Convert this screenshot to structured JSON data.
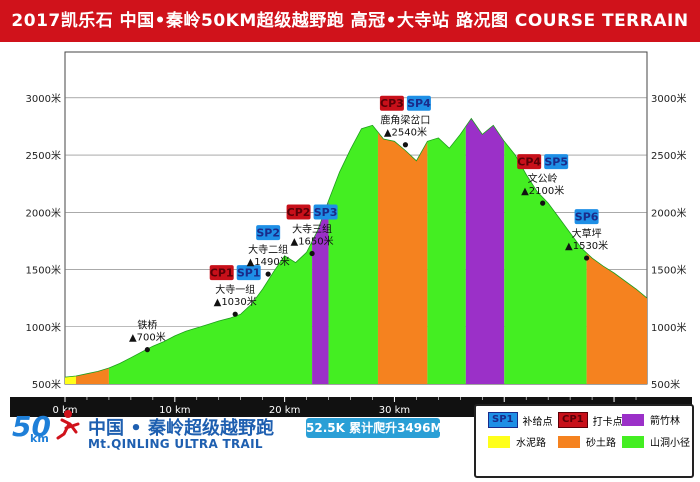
{
  "title": "2017凯乐石 中国•秦岭50KM超级越野跑  高冠•大寺站   路况图 COURSE TERRAIN",
  "chart_data": {
    "type": "area",
    "xlim": [
      0,
      53
    ],
    "ylim": [
      500,
      3400
    ],
    "x_ticks": [
      {
        "value": 0,
        "label": "0 km"
      },
      {
        "value": 10,
        "label": "10 km"
      },
      {
        "value": 20,
        "label": "20 km"
      },
      {
        "value": 30,
        "label": "30 km"
      },
      {
        "value": 40,
        "label": "40 km"
      },
      {
        "value": 50,
        "label": "50 km"
      }
    ],
    "y_ticks": [
      {
        "value": 500,
        "label": "500米"
      },
      {
        "value": 1000,
        "label": "1000米"
      },
      {
        "value": 1500,
        "label": "1500米"
      },
      {
        "value": 2000,
        "label": "2000米"
      },
      {
        "value": 2500,
        "label": "2500米"
      },
      {
        "value": 3000,
        "label": "3000米"
      }
    ],
    "profile": [
      [
        0,
        560
      ],
      [
        1,
        570
      ],
      [
        2,
        590
      ],
      [
        3,
        610
      ],
      [
        4,
        640
      ],
      [
        5,
        680
      ],
      [
        6,
        730
      ],
      [
        7,
        780
      ],
      [
        8,
        830
      ],
      [
        9,
        870
      ],
      [
        10,
        920
      ],
      [
        11,
        960
      ],
      [
        12,
        990
      ],
      [
        13,
        1020
      ],
      [
        14,
        1050
      ],
      [
        15,
        1075
      ],
      [
        16,
        1110
      ],
      [
        17,
        1200
      ],
      [
        18,
        1330
      ],
      [
        19,
        1480
      ],
      [
        20,
        1620
      ],
      [
        21,
        1560
      ],
      [
        22,
        1650
      ],
      [
        23,
        1840
      ],
      [
        24,
        2100
      ],
      [
        25,
        2350
      ],
      [
        26,
        2550
      ],
      [
        27,
        2730
      ],
      [
        28,
        2760
      ],
      [
        29,
        2640
      ],
      [
        30,
        2620
      ],
      [
        31,
        2540
      ],
      [
        32,
        2450
      ],
      [
        33,
        2620
      ],
      [
        34,
        2650
      ],
      [
        35,
        2560
      ],
      [
        36,
        2680
      ],
      [
        37,
        2820
      ],
      [
        38,
        2680
      ],
      [
        39,
        2760
      ],
      [
        40,
        2620
      ],
      [
        41,
        2500
      ],
      [
        42,
        2330
      ],
      [
        43,
        2180
      ],
      [
        44,
        2080
      ],
      [
        45,
        1950
      ],
      [
        46,
        1820
      ],
      [
        47,
        1690
      ],
      [
        48,
        1600
      ],
      [
        49,
        1530
      ],
      [
        50,
        1470
      ],
      [
        51,
        1400
      ],
      [
        52,
        1330
      ],
      [
        53,
        1250
      ]
    ],
    "segments": [
      {
        "from": 0,
        "to": 1,
        "surface": "cement"
      },
      {
        "from": 1,
        "to": 4,
        "surface": "gravel"
      },
      {
        "from": 4,
        "to": 22.5,
        "surface": "trail"
      },
      {
        "from": 22.5,
        "to": 24,
        "surface": "bamboo"
      },
      {
        "from": 24,
        "to": 28.5,
        "surface": "trail"
      },
      {
        "from": 28.5,
        "to": 33,
        "surface": "gravel"
      },
      {
        "from": 33,
        "to": 36.5,
        "surface": "trail"
      },
      {
        "from": 36.5,
        "to": 40,
        "surface": "bamboo"
      },
      {
        "from": 40,
        "to": 47.5,
        "surface": "trail"
      },
      {
        "from": 47.5,
        "to": 53,
        "surface": "gravel"
      }
    ],
    "stations": [
      {
        "x": 7.5,
        "y": 800,
        "tags": [],
        "name": "铁桥",
        "elev": "▲700米"
      },
      {
        "x": 15.5,
        "y": 1110,
        "tags": [
          "CP1",
          "SP1"
        ],
        "name": "大寺一组",
        "elev": "▲1030米"
      },
      {
        "x": 18.5,
        "y": 1460,
        "tags": [
          "SP2"
        ],
        "name": "大寺二组",
        "elev": "▲1490米"
      },
      {
        "x": 22.5,
        "y": 1640,
        "tags": [
          "CP2",
          "SP3"
        ],
        "name": "大寺三组",
        "elev": "▲1650米"
      },
      {
        "x": 31,
        "y": 2590,
        "tags": [
          "CP3",
          "SP4"
        ],
        "name": "鹿角梁岔口",
        "elev": "▲2540米"
      },
      {
        "x": 43.5,
        "y": 2080,
        "tags": [
          "CP4",
          "SP5"
        ],
        "name": "文公岭",
        "elev": "▲2100米"
      },
      {
        "x": 47.5,
        "y": 1600,
        "tags": [
          "SP6"
        ],
        "name": "大草坪",
        "elev": "▲1530米"
      }
    ]
  },
  "colors": {
    "cement": "#ffff1a",
    "gravel": "#f5821f",
    "trail": "#44ee22",
    "bamboo": "#9b30c8",
    "sp_badge": "#1e8fe6",
    "cp_badge": "#c8101a",
    "title_bg": "#d0121b"
  },
  "logo": {
    "num": "50",
    "km": "km",
    "cn": "中国 • 秦岭超级越野跑",
    "en": "Mt.QINLING ULTRA TRAIL"
  },
  "ascent_label": "52.5K 累计爬升3496M",
  "legend": {
    "sp_tag": "SP1",
    "sp_label": "补给点",
    "cp_tag": "CP1",
    "cp_label": "打卡点",
    "bamboo_label": "箭竹林",
    "cement_label": "水泥路",
    "gravel_label": "砂土路",
    "trail_label": "山洞小径"
  }
}
